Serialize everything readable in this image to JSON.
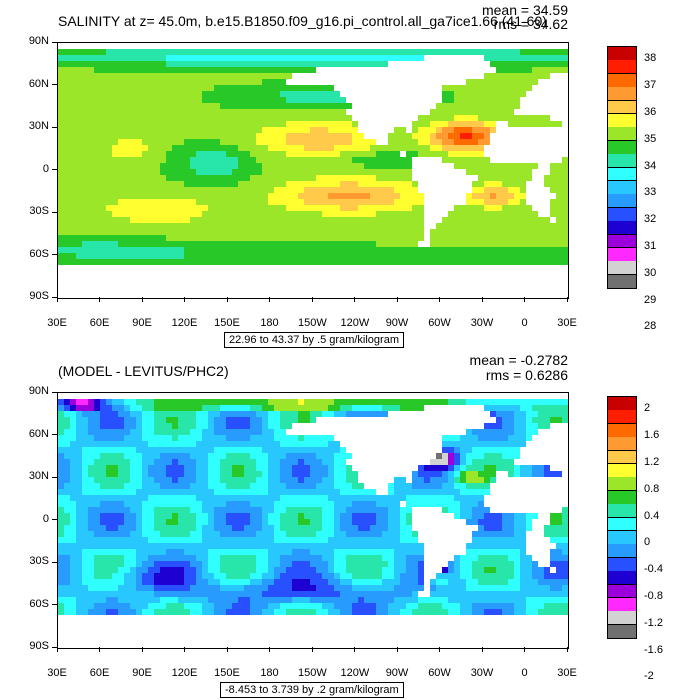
{
  "chart_data": [
    {
      "type": "heatmap",
      "title": "SALINITY at z=  45.0m, b.e15.B1850.f09_g16.pi_control.all_ga7ice1.66 (41-60)",
      "stats": {
        "mean_label": "mean = 34.59",
        "rms_label": "rms = 34.62"
      },
      "x_ticks": [
        "30E",
        "60E",
        "90E",
        "120E",
        "150E",
        "180",
        "150W",
        "120W",
        "90W",
        "60W",
        "30W",
        "0",
        "30E"
      ],
      "y_ticks": [
        "90N",
        "60N",
        "30N",
        "0",
        "30S",
        "60S",
        "90S"
      ],
      "contour_info": "22.96 to 43.37 by .5 gram/kilogram",
      "levels": [
        "38",
        "37",
        "36",
        "35",
        "34",
        "33",
        "32",
        "31",
        "30",
        "29",
        "28"
      ],
      "colors": [
        "#c80000",
        "#ff1e00",
        "#ff6a00",
        "#ff9a33",
        "#ffc94a",
        "#ffff30",
        "#9be628",
        "#28c828",
        "#28e6aa",
        "#30ffff",
        "#28c8ff",
        "#289bff",
        "#2850ff",
        "#1e00d2",
        "#9b00dc",
        "#ff28ff",
        "#d2d2d2",
        "#707070"
      ],
      "value_range": [
        28,
        38
      ]
    },
    {
      "type": "heatmap",
      "title": "(MODEL - LEVITUS/PHC2)",
      "stats": {
        "mean_label": "mean = -0.2782",
        "rms_label": "rms = 0.6286"
      },
      "x_ticks": [
        "30E",
        "60E",
        "90E",
        "120E",
        "150E",
        "180",
        "150W",
        "120W",
        "90W",
        "60W",
        "30W",
        "0",
        "30E"
      ],
      "y_ticks": [
        "90N",
        "60N",
        "30N",
        "0",
        "30S",
        "60S",
        "90S"
      ],
      "contour_info": "-8.453 to 3.739 by .2 gram/kilogram",
      "levels": [
        "2",
        "1.6",
        "1.2",
        "0.8",
        "0.4",
        "0",
        "-0.4",
        "-0.8",
        "-1.2",
        "-1.6",
        "-2"
      ],
      "colors": [
        "#c80000",
        "#ff1e00",
        "#ff6a00",
        "#ff9a33",
        "#ffc94a",
        "#ffff30",
        "#9be628",
        "#28c828",
        "#28e6aa",
        "#30ffff",
        "#28c8ff",
        "#289bff",
        "#2850ff",
        "#1e00d2",
        "#9b00dc",
        "#ff28ff",
        "#d2d2d2",
        "#707070"
      ],
      "value_range": [
        -2,
        2
      ]
    }
  ]
}
